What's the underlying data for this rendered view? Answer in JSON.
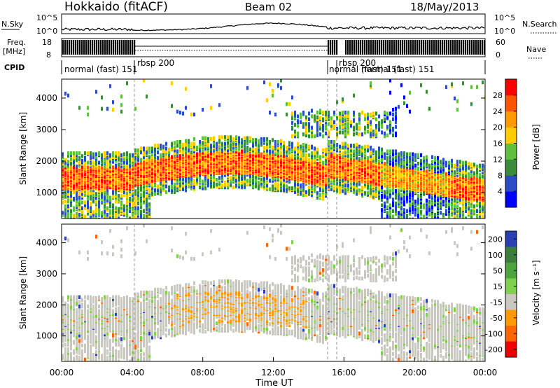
{
  "header": {
    "station": "Hokkaido (fitACF)",
    "beam": "Beam 02",
    "date": "18/May/2013"
  },
  "noise_panel": {
    "left_label": "N.Sky",
    "right_label": "N.Search",
    "left_ticks": [
      "10^5",
      "10^0"
    ],
    "right_ticks": [
      "10^5",
      "10^0"
    ]
  },
  "freq_panel": {
    "left_label_1": "Freq.",
    "left_label_2": "[MHz]",
    "left_ticks": [
      "18",
      "8"
    ],
    "right_label": "Nave",
    "right_ticks": [
      "60",
      "0"
    ]
  },
  "cpid": {
    "label": "CPID",
    "segments": [
      {
        "text": "normal (fast) 151"
      },
      {
        "text": "rbsp 200"
      },
      {
        "text": "normal (fast) 151"
      },
      {
        "text": "rbsp 200"
      },
      {
        "text": "normal (fast) 151"
      }
    ]
  },
  "colors": {
    "power_scale": [
      "#0000ff",
      "#2b4cc4",
      "#3a8c3a",
      "#5fbf3f",
      "#ffcc00",
      "#ff9900",
      "#ff5500",
      "#ff0000"
    ],
    "velocity_scale": [
      "#2b3fb5",
      "#3c7f3c",
      "#4ca63c",
      "#7fd04c",
      "#c8c8c0",
      "#ff9900",
      "#ff6600",
      "#ee0000"
    ]
  },
  "chart_data": [
    {
      "type": "heatmap",
      "name": "power",
      "xlabel": "",
      "ylabel": "Slant Range [km]",
      "xlim": [
        "00:00",
        "24:00"
      ],
      "ylim": [
        180,
        4600
      ],
      "yticks": [
        "1000",
        "2000",
        "3000",
        "4000"
      ],
      "colorbar": {
        "label": "Power [dB]",
        "ticks": [
          "28",
          "24",
          "20",
          "16",
          "12",
          "8",
          "4"
        ],
        "range": [
          0,
          32
        ]
      }
    },
    {
      "type": "heatmap",
      "name": "velocity",
      "xlabel": "Time UT",
      "ylabel": "Slant Range [km]",
      "xlim": [
        "00:00",
        "24:00"
      ],
      "ylim": [
        180,
        4600
      ],
      "xticks": [
        "00:00",
        "04:00",
        "08:00",
        "12:00",
        "16:00",
        "20:00",
        "00:00"
      ],
      "yticks": [
        "1000",
        "2000",
        "3000",
        "4000"
      ],
      "colorbar": {
        "label": "Velocity [m s⁻¹]",
        "ticks": [
          "200",
          "100",
          "50",
          "15",
          "-15",
          "-50",
          "-100",
          "-200"
        ],
        "range": [
          -250,
          250
        ]
      }
    }
  ]
}
